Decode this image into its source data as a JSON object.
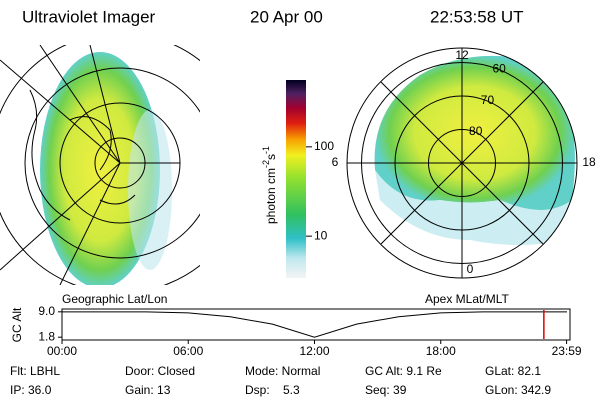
{
  "header": {
    "instrument": "Ultraviolet Imager",
    "date": "20 Apr 00",
    "time": "22:53:58 UT"
  },
  "left_map": {
    "label": "Geographic Lat/Lon"
  },
  "right_map": {
    "label": "Apex MLat/MLT",
    "mlt_labels": [
      12,
      18,
      6,
      0
    ],
    "mlat_rings": [
      60,
      70,
      80
    ]
  },
  "colorbar": {
    "label": "photon cm",
    "exp1": "-2",
    "unit2": "s",
    "exp2": "-1",
    "log": true,
    "lim": [
      3.4,
      560
    ],
    "ticks": [
      10,
      100
    ]
  },
  "plot": {
    "ylabel": "GC Alt",
    "ylim": [
      1.0,
      9.8
    ],
    "yticks": [
      {
        "value": 9.0,
        "label": "9.0"
      },
      1.8
    ],
    "xlim": [
      0,
      24
    ],
    "xticks": [
      {
        "value": 0,
        "label": "00:00"
      },
      {
        "value": 6,
        "label": "06:00"
      },
      {
        "value": 12,
        "label": "12:00"
      },
      {
        "value": 18,
        "label": "18:00"
      },
      {
        "value": 23.98,
        "label": "23:59"
      }
    ],
    "altitude": {
      "x": [
        0,
        4,
        6,
        8,
        10,
        12,
        14,
        16,
        18,
        20,
        24
      ],
      "values": [
        9.0,
        9.0,
        8.7,
        7.6,
        5.5,
        1.8,
        5.5,
        7.6,
        8.7,
        9.0,
        9.0
      ]
    },
    "current": 22.9,
    "current_color": "#e00000"
  },
  "footer": {
    "rows": [
      [
        "Flt: LBHL",
        "Door: Closed",
        "Mode: Normal",
        "GC Alt: 9.1 Re",
        "GLat: 82.1"
      ],
      [
        "IP: 36.0",
        "Gain: 13",
        "Dsp:    5.3",
        "Seq: 39",
        "GLon: 342.9"
      ]
    ]
  }
}
